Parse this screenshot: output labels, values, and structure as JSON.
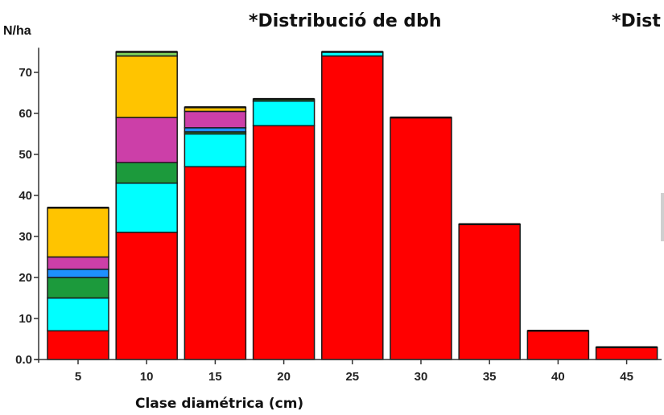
{
  "chart_data": {
    "type": "bar",
    "stacked": true,
    "title": "*Distribució de dbh",
    "title_secondary_clipped": "*Dist",
    "xlabel": "Clase diamétrica (cm)",
    "ylabel": "N/ha",
    "categories": [
      "5",
      "10",
      "15",
      "20",
      "25",
      "30",
      "35",
      "40",
      "45"
    ],
    "y_ticks": [
      "0.0",
      "10",
      "20",
      "30",
      "40",
      "50",
      "60",
      "70"
    ],
    "ylim": [
      0,
      76
    ],
    "grid": false,
    "legend": "none",
    "series": [
      {
        "color": "#ff0000",
        "values": [
          7,
          31,
          47,
          57,
          74,
          59,
          33,
          7,
          3
        ]
      },
      {
        "color": "#00ffff",
        "values": [
          8,
          12,
          8,
          6,
          1,
          0,
          0,
          0,
          0
        ]
      },
      {
        "color": "#1c9a3c",
        "values": [
          5,
          5,
          0.5,
          0.5,
          0,
          0,
          0,
          0,
          0
        ]
      },
      {
        "color": "#1e90ff",
        "values": [
          2,
          0,
          1,
          0,
          0,
          0,
          0,
          0,
          0
        ]
      },
      {
        "color": "#cc3fa8",
        "values": [
          3,
          11,
          4,
          0,
          0,
          0,
          0,
          0,
          0
        ]
      },
      {
        "color": "#ffc400",
        "values": [
          12,
          15,
          1,
          0,
          0,
          0,
          0,
          0,
          0
        ]
      },
      {
        "color": "#7ccf5a",
        "values": [
          0,
          1,
          0,
          0,
          0,
          0,
          0,
          0,
          0
        ]
      }
    ]
  }
}
